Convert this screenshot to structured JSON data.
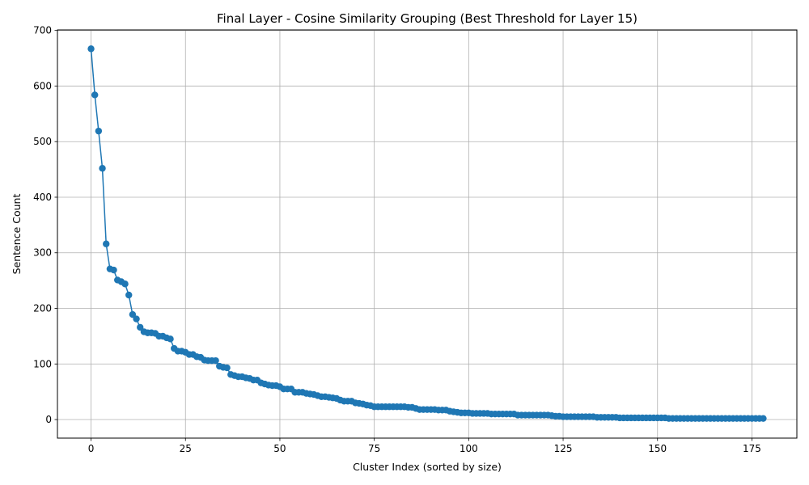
{
  "chart_data": {
    "type": "line",
    "title": "Final Layer - Cosine Similarity Grouping (Best Threshold for Layer 15)",
    "xlabel": "Cluster Index (sorted by size)",
    "ylabel": "Sentence Count",
    "xlim": [
      -8.9,
      186.9
    ],
    "ylim": [
      -33.4,
      701
    ],
    "xticks": [
      0,
      25,
      50,
      75,
      100,
      125,
      150,
      175
    ],
    "yticks": [
      0,
      100,
      200,
      300,
      400,
      500,
      600,
      700
    ],
    "grid": true,
    "marker": "circle",
    "color": "#1f77b4",
    "series": [
      {
        "values": [
          667,
          584,
          519,
          452,
          316,
          271,
          269,
          251,
          248,
          244,
          224,
          189,
          181,
          166,
          158,
          156,
          156,
          155,
          150,
          150,
          147,
          145,
          128,
          123,
          123,
          121,
          117,
          117,
          113,
          112,
          107,
          106,
          106,
          106,
          96,
          94,
          93,
          81,
          79,
          77,
          77,
          75,
          74,
          71,
          71,
          66,
          64,
          62,
          61,
          61,
          59,
          55,
          55,
          55,
          49,
          49,
          49,
          47,
          46,
          45,
          43,
          41,
          41,
          40,
          39,
          38,
          35,
          33,
          33,
          33,
          30,
          29,
          28,
          26,
          25,
          23,
          23,
          23,
          23,
          23,
          23,
          23,
          23,
          23,
          22,
          22,
          20,
          18,
          18,
          18,
          18,
          18,
          17,
          17,
          17,
          15,
          14,
          13,
          12,
          12,
          12,
          11,
          11,
          11,
          11,
          11,
          10,
          10,
          10,
          10,
          10,
          10,
          10,
          8,
          8,
          8,
          8,
          8,
          8,
          8,
          8,
          8,
          7,
          6,
          6,
          5,
          5,
          5,
          5,
          5,
          5,
          5,
          5,
          5,
          4,
          4,
          4,
          4,
          4,
          4,
          3,
          3,
          3,
          3,
          3,
          3,
          3,
          3,
          3,
          3,
          3,
          3,
          3,
          2,
          2,
          2,
          2,
          2,
          2,
          2,
          2,
          2,
          2,
          2,
          2,
          2,
          2,
          2,
          2,
          2,
          2,
          2,
          2,
          2,
          2,
          2,
          2,
          2,
          2
        ]
      }
    ]
  }
}
